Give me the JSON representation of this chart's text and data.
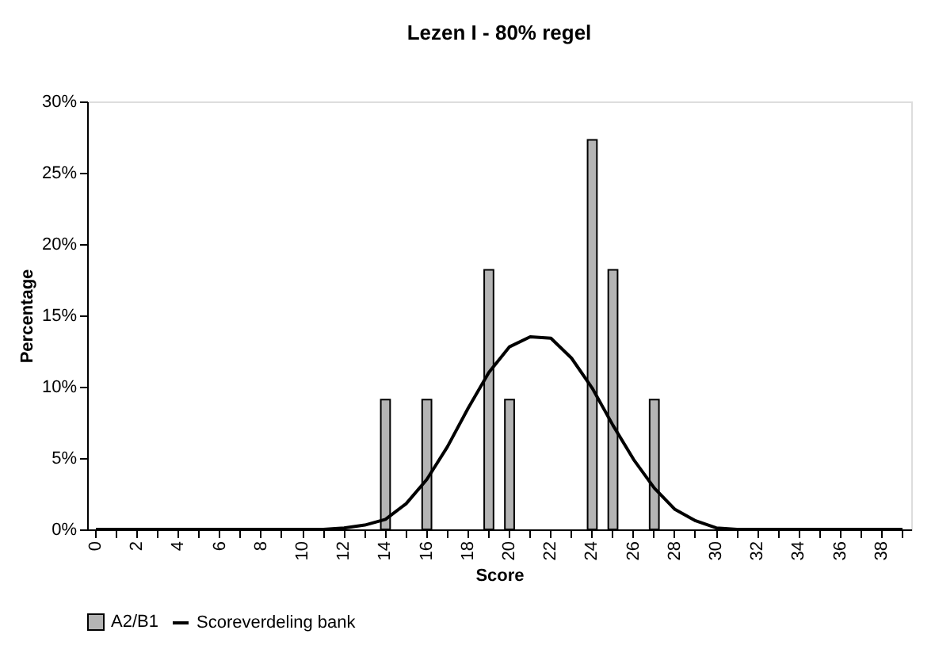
{
  "chart_data": {
    "type": "bar",
    "title": "Lezen I - 80% regel",
    "xlabel": "Score",
    "ylabel": "Percentage",
    "categories": [
      "0",
      null,
      "2",
      null,
      "4",
      null,
      "6",
      null,
      "8",
      null,
      "10",
      null,
      "12",
      null,
      "14",
      null,
      "16",
      null,
      "18",
      null,
      "20",
      null,
      "22",
      null,
      "24",
      null,
      "26",
      null,
      "28",
      null,
      "30",
      null,
      "32",
      null,
      "34",
      null,
      "36",
      null,
      "38",
      null
    ],
    "series": [
      {
        "name": "A2/B1",
        "color": "#b4b4b4",
        "values": [
          null,
          null,
          null,
          null,
          null,
          null,
          null,
          null,
          null,
          null,
          null,
          null,
          null,
          null,
          9.1,
          null,
          9.1,
          null,
          null,
          18.2,
          9.1,
          null,
          null,
          null,
          27.3,
          18.2,
          null,
          9.1,
          null,
          null,
          null,
          null,
          null,
          null,
          null,
          null,
          null,
          null,
          null,
          null
        ]
      },
      {
        "name": "Scoreverdeling bank",
        "type": "line",
        "color": "#000000",
        "values": [
          0,
          0,
          0,
          0,
          0,
          0,
          0,
          0,
          0,
          0,
          0,
          0,
          0.1,
          0.3,
          0.7,
          1.8,
          3.5,
          5.8,
          8.5,
          11.0,
          12.8,
          13.5,
          13.4,
          12.0,
          9.9,
          7.3,
          4.9,
          2.9,
          1.4,
          0.6,
          0.1,
          0,
          0,
          0,
          0,
          0,
          0,
          0,
          0,
          0
        ]
      }
    ],
    "ylim": [
      0,
      30
    ],
    "yticks": [
      {
        "value": 0,
        "label": "0%"
      },
      {
        "value": 5,
        "label": "5%"
      },
      {
        "value": 10,
        "label": "10%"
      },
      {
        "value": 15,
        "label": "15%"
      },
      {
        "value": 20,
        "label": "20%"
      },
      {
        "value": 25,
        "label": "25%"
      },
      {
        "value": 30,
        "label": "30%"
      }
    ],
    "grid": false,
    "legend": "bottom",
    "marker": "none",
    "line_style": "solid"
  }
}
